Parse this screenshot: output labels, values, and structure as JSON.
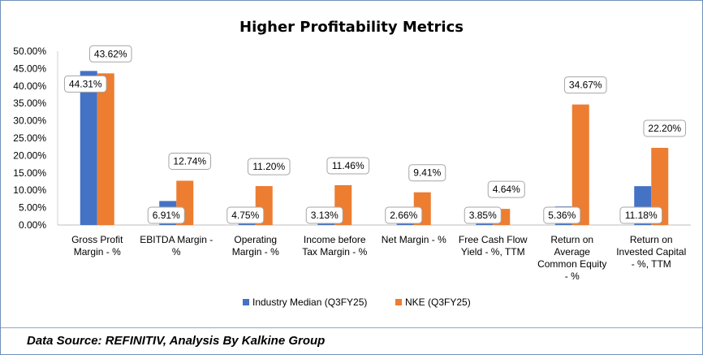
{
  "chart_data": {
    "type": "bar",
    "title": "Higher Profitability Metrics",
    "categories": [
      [
        "Gross Profit",
        "Margin - %"
      ],
      [
        "EBITDA Margin -",
        "%"
      ],
      [
        "Operating",
        "Margin - %"
      ],
      [
        "Income before",
        "Tax Margin - %"
      ],
      [
        "Net Margin - %"
      ],
      [
        "Free Cash Flow",
        "Yield - %, TTM"
      ],
      [
        "Return on",
        "Average",
        "Common Equity",
        "- %"
      ],
      [
        "Return on",
        "Invested Capital",
        "- %, TTM"
      ]
    ],
    "series": [
      {
        "name": "Industry Median (Q3FY25)",
        "color": "#4472c4",
        "values": [
          44.31,
          6.91,
          4.75,
          3.13,
          2.66,
          3.85,
          5.36,
          11.18
        ],
        "labels": [
          "44.31%",
          "6.91%",
          "4.75%",
          "3.13%",
          "2.66%",
          "3.85%",
          "5.36%",
          "11.18%"
        ]
      },
      {
        "name": "NKE (Q3FY25)",
        "color": "#ed7d31",
        "values": [
          43.62,
          12.74,
          11.2,
          11.46,
          9.41,
          4.64,
          34.67,
          22.2
        ],
        "labels": [
          "43.62%",
          "12.74%",
          "11.20%",
          "11.46%",
          "9.41%",
          "4.64%",
          "34.67%",
          "22.20%"
        ]
      }
    ],
    "ylim": [
      0,
      50
    ],
    "yticks": [
      "0.00%",
      "5.00%",
      "10.00%",
      "15.00%",
      "20.00%",
      "25.00%",
      "30.00%",
      "35.00%",
      "40.00%",
      "45.00%",
      "50.00%"
    ],
    "grid": false,
    "legend_position": "bottom"
  },
  "footer": {
    "source": "Data Source: REFINITIV, Analysis By Kalkine Group"
  }
}
